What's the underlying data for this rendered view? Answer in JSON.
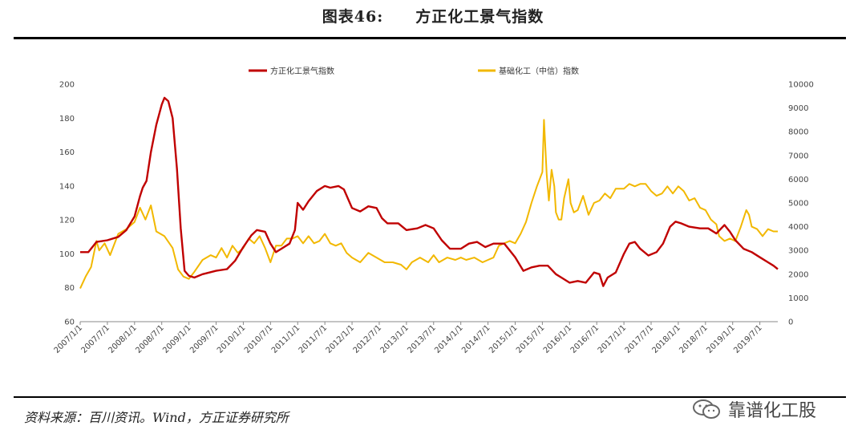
{
  "header": {
    "figure_no": "图表46:",
    "title": "方正化工景气指数"
  },
  "footer": {
    "source": "资料来源：百川资讯。Wind，方正证券研究所",
    "watermark": "靠谱化工股"
  },
  "colors": {
    "series1": "#c00000",
    "series2": "#f2b800",
    "axis": "#888888"
  },
  "chart_data": {
    "type": "line",
    "title": "",
    "legend_position": "top",
    "grid": false,
    "y_left": {
      "lim": [
        60,
        200
      ],
      "ticks": [
        "60",
        "80",
        "100",
        "120",
        "140",
        "160",
        "180",
        "200"
      ]
    },
    "y_right": {
      "lim": [
        0,
        10000
      ],
      "ticks": [
        "0",
        "1000",
        "2000",
        "3000",
        "4000",
        "5000",
        "6000",
        "7000",
        "8000",
        "9000",
        "10000"
      ]
    },
    "x_range": [
      2007.0,
      2019.83
    ],
    "x_ticks": [
      "2007/1/1",
      "2007/7/1",
      "2008/1/1",
      "2008/7/1",
      "2009/1/1",
      "2009/7/1",
      "2010/1/1",
      "2010/7/1",
      "2011/1/1",
      "2011/7/1",
      "2012/1/1",
      "2012/7/1",
      "2013/1/1",
      "2013/7/1",
      "2014/1/1",
      "2014/7/1",
      "2015/1/1",
      "2015/7/1",
      "2016/1/1",
      "2016/7/1",
      "2017/1/1",
      "2017/7/1",
      "2018/1/1",
      "2018/7/1",
      "2019/1/1",
      "2019/7/1"
    ],
    "series": [
      {
        "name": "方正化工景气指数",
        "axis": "left",
        "points": [
          [
            2007.0,
            101
          ],
          [
            2007.15,
            101
          ],
          [
            2007.3,
            107
          ],
          [
            2007.5,
            108
          ],
          [
            2007.7,
            110
          ],
          [
            2007.85,
            114
          ],
          [
            2008.0,
            122
          ],
          [
            2008.1,
            134
          ],
          [
            2008.15,
            139
          ],
          [
            2008.22,
            143
          ],
          [
            2008.3,
            160
          ],
          [
            2008.4,
            176
          ],
          [
            2008.5,
            188
          ],
          [
            2008.55,
            192
          ],
          [
            2008.62,
            190
          ],
          [
            2008.7,
            180
          ],
          [
            2008.78,
            150
          ],
          [
            2008.85,
            115
          ],
          [
            2008.92,
            90
          ],
          [
            2009.0,
            87
          ],
          [
            2009.1,
            86
          ],
          [
            2009.25,
            88
          ],
          [
            2009.5,
            90
          ],
          [
            2009.7,
            91
          ],
          [
            2009.85,
            96
          ],
          [
            2010.0,
            104
          ],
          [
            2010.15,
            111
          ],
          [
            2010.25,
            114
          ],
          [
            2010.4,
            113
          ],
          [
            2010.5,
            106
          ],
          [
            2010.6,
            101
          ],
          [
            2010.7,
            103
          ],
          [
            2010.85,
            106
          ],
          [
            2010.95,
            114
          ],
          [
            2011.0,
            130
          ],
          [
            2011.1,
            126
          ],
          [
            2011.2,
            131
          ],
          [
            2011.35,
            137
          ],
          [
            2011.5,
            140
          ],
          [
            2011.6,
            139
          ],
          [
            2011.75,
            140
          ],
          [
            2011.85,
            138
          ],
          [
            2012.0,
            127
          ],
          [
            2012.15,
            125
          ],
          [
            2012.3,
            128
          ],
          [
            2012.45,
            127
          ],
          [
            2012.55,
            121
          ],
          [
            2012.65,
            118
          ],
          [
            2012.85,
            118
          ],
          [
            2013.0,
            114
          ],
          [
            2013.2,
            115
          ],
          [
            2013.35,
            117
          ],
          [
            2013.5,
            115
          ],
          [
            2013.65,
            108
          ],
          [
            2013.8,
            103
          ],
          [
            2014.0,
            103
          ],
          [
            2014.15,
            106
          ],
          [
            2014.3,
            107
          ],
          [
            2014.45,
            104
          ],
          [
            2014.6,
            106
          ],
          [
            2014.8,
            106
          ],
          [
            2015.0,
            98
          ],
          [
            2015.15,
            90
          ],
          [
            2015.3,
            92
          ],
          [
            2015.45,
            93
          ],
          [
            2015.6,
            93
          ],
          [
            2015.75,
            88
          ],
          [
            2015.85,
            86
          ],
          [
            2016.0,
            83
          ],
          [
            2016.15,
            84
          ],
          [
            2016.3,
            83
          ],
          [
            2016.45,
            89
          ],
          [
            2016.55,
            88
          ],
          [
            2016.62,
            81
          ],
          [
            2016.7,
            86
          ],
          [
            2016.85,
            89
          ],
          [
            2017.0,
            100
          ],
          [
            2017.1,
            106
          ],
          [
            2017.2,
            107
          ],
          [
            2017.3,
            103
          ],
          [
            2017.45,
            99
          ],
          [
            2017.6,
            101
          ],
          [
            2017.72,
            106
          ],
          [
            2017.85,
            116
          ],
          [
            2017.95,
            119
          ],
          [
            2018.05,
            118
          ],
          [
            2018.2,
            116
          ],
          [
            2018.4,
            115
          ],
          [
            2018.55,
            115
          ],
          [
            2018.7,
            112
          ],
          [
            2018.85,
            117
          ],
          [
            2018.95,
            113
          ],
          [
            2019.05,
            108
          ],
          [
            2019.2,
            103
          ],
          [
            2019.35,
            101
          ],
          [
            2019.5,
            98
          ],
          [
            2019.65,
            95
          ],
          [
            2019.75,
            93
          ],
          [
            2019.83,
            91
          ]
        ]
      },
      {
        "name": "基础化工（中信）指数",
        "axis": "right",
        "points": [
          [
            2007.0,
            1400
          ],
          [
            2007.1,
            1900
          ],
          [
            2007.2,
            2300
          ],
          [
            2007.3,
            3400
          ],
          [
            2007.35,
            3000
          ],
          [
            2007.45,
            3300
          ],
          [
            2007.55,
            2800
          ],
          [
            2007.7,
            3700
          ],
          [
            2007.85,
            3900
          ],
          [
            2008.0,
            4200
          ],
          [
            2008.1,
            4800
          ],
          [
            2008.2,
            4300
          ],
          [
            2008.3,
            4900
          ],
          [
            2008.4,
            3800
          ],
          [
            2008.55,
            3600
          ],
          [
            2008.7,
            3100
          ],
          [
            2008.8,
            2200
          ],
          [
            2008.9,
            1900
          ],
          [
            2009.0,
            1800
          ],
          [
            2009.1,
            2100
          ],
          [
            2009.25,
            2600
          ],
          [
            2009.4,
            2800
          ],
          [
            2009.5,
            2700
          ],
          [
            2009.6,
            3100
          ],
          [
            2009.7,
            2700
          ],
          [
            2009.8,
            3200
          ],
          [
            2009.9,
            2900
          ],
          [
            2010.0,
            3100
          ],
          [
            2010.1,
            3500
          ],
          [
            2010.2,
            3300
          ],
          [
            2010.3,
            3600
          ],
          [
            2010.4,
            3100
          ],
          [
            2010.5,
            2500
          ],
          [
            2010.6,
            3200
          ],
          [
            2010.7,
            3200
          ],
          [
            2010.8,
            3500
          ],
          [
            2010.9,
            3500
          ],
          [
            2011.0,
            3600
          ],
          [
            2011.1,
            3300
          ],
          [
            2011.2,
            3600
          ],
          [
            2011.3,
            3300
          ],
          [
            2011.4,
            3400
          ],
          [
            2011.5,
            3700
          ],
          [
            2011.6,
            3300
          ],
          [
            2011.7,
            3200
          ],
          [
            2011.8,
            3300
          ],
          [
            2011.9,
            2900
          ],
          [
            2012.0,
            2700
          ],
          [
            2012.15,
            2500
          ],
          [
            2012.3,
            2900
          ],
          [
            2012.45,
            2700
          ],
          [
            2012.6,
            2500
          ],
          [
            2012.75,
            2500
          ],
          [
            2012.9,
            2400
          ],
          [
            2013.0,
            2200
          ],
          [
            2013.1,
            2500
          ],
          [
            2013.25,
            2700
          ],
          [
            2013.4,
            2500
          ],
          [
            2013.5,
            2800
          ],
          [
            2013.6,
            2500
          ],
          [
            2013.75,
            2700
          ],
          [
            2013.9,
            2600
          ],
          [
            2014.0,
            2700
          ],
          [
            2014.1,
            2600
          ],
          [
            2014.25,
            2700
          ],
          [
            2014.4,
            2500
          ],
          [
            2014.5,
            2600
          ],
          [
            2014.6,
            2700
          ],
          [
            2014.7,
            3200
          ],
          [
            2014.8,
            3300
          ],
          [
            2014.9,
            3400
          ],
          [
            2015.0,
            3300
          ],
          [
            2015.1,
            3700
          ],
          [
            2015.2,
            4200
          ],
          [
            2015.3,
            5000
          ],
          [
            2015.4,
            5700
          ],
          [
            2015.5,
            6300
          ],
          [
            2015.53,
            8500
          ],
          [
            2015.58,
            6200
          ],
          [
            2015.62,
            5100
          ],
          [
            2015.67,
            6400
          ],
          [
            2015.72,
            5700
          ],
          [
            2015.75,
            4600
          ],
          [
            2015.8,
            4300
          ],
          [
            2015.85,
            4300
          ],
          [
            2015.9,
            5200
          ],
          [
            2015.98,
            6000
          ],
          [
            2016.02,
            5000
          ],
          [
            2016.08,
            4600
          ],
          [
            2016.15,
            4700
          ],
          [
            2016.25,
            5300
          ],
          [
            2016.35,
            4500
          ],
          [
            2016.45,
            5000
          ],
          [
            2016.55,
            5100
          ],
          [
            2016.65,
            5400
          ],
          [
            2016.75,
            5200
          ],
          [
            2016.85,
            5600
          ],
          [
            2017.0,
            5600
          ],
          [
            2017.1,
            5800
          ],
          [
            2017.2,
            5700
          ],
          [
            2017.3,
            5800
          ],
          [
            2017.4,
            5800
          ],
          [
            2017.5,
            5500
          ],
          [
            2017.6,
            5300
          ],
          [
            2017.7,
            5400
          ],
          [
            2017.8,
            5700
          ],
          [
            2017.9,
            5400
          ],
          [
            2018.0,
            5700
          ],
          [
            2018.1,
            5500
          ],
          [
            2018.2,
            5100
          ],
          [
            2018.3,
            5200
          ],
          [
            2018.4,
            4800
          ],
          [
            2018.5,
            4700
          ],
          [
            2018.6,
            4300
          ],
          [
            2018.7,
            4100
          ],
          [
            2018.75,
            3600
          ],
          [
            2018.85,
            3400
          ],
          [
            2018.95,
            3500
          ],
          [
            2019.05,
            3400
          ],
          [
            2019.15,
            4000
          ],
          [
            2019.25,
            4700
          ],
          [
            2019.3,
            4500
          ],
          [
            2019.35,
            4000
          ],
          [
            2019.45,
            3900
          ],
          [
            2019.55,
            3600
          ],
          [
            2019.65,
            3900
          ],
          [
            2019.75,
            3800
          ],
          [
            2019.83,
            3800
          ]
        ]
      }
    ]
  }
}
